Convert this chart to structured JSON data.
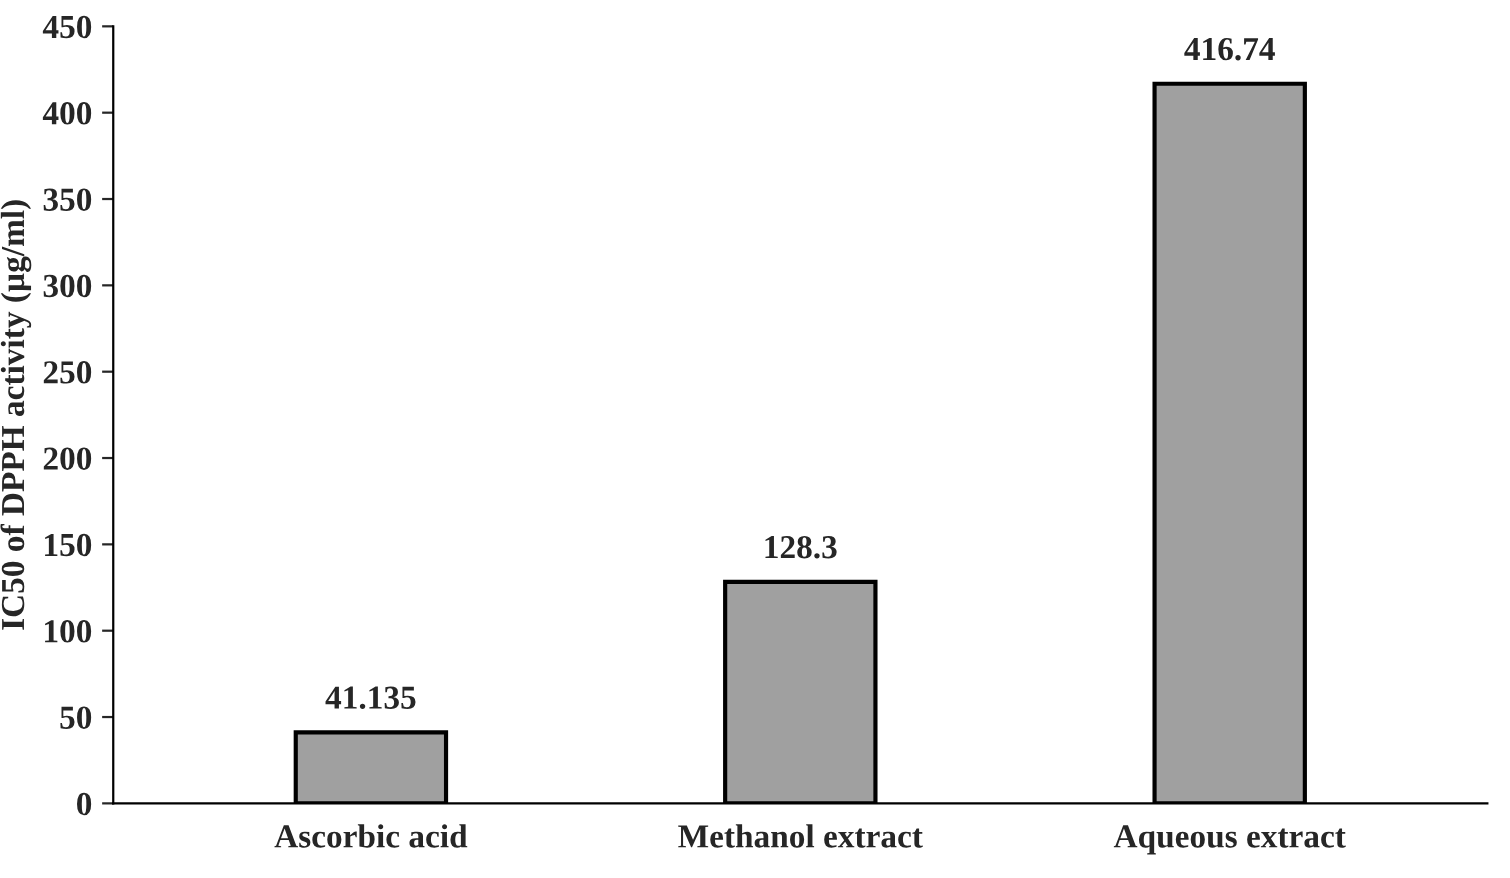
{
  "chart_data": {
    "type": "bar",
    "ylabel": "IC50 of DPPH activity (µg/ml)",
    "categories": [
      "Ascorbic acid",
      "Methanol extract",
      "Aqueous extract"
    ],
    "values": [
      41.135,
      128.3,
      416.74
    ],
    "color": "#a0a0a0",
    "ylim": [
      0,
      450
    ],
    "yticks": [
      0,
      50,
      100,
      150,
      200,
      250,
      300,
      350,
      400,
      450
    ],
    "data_labels": true,
    "grid": false,
    "legend": false
  }
}
